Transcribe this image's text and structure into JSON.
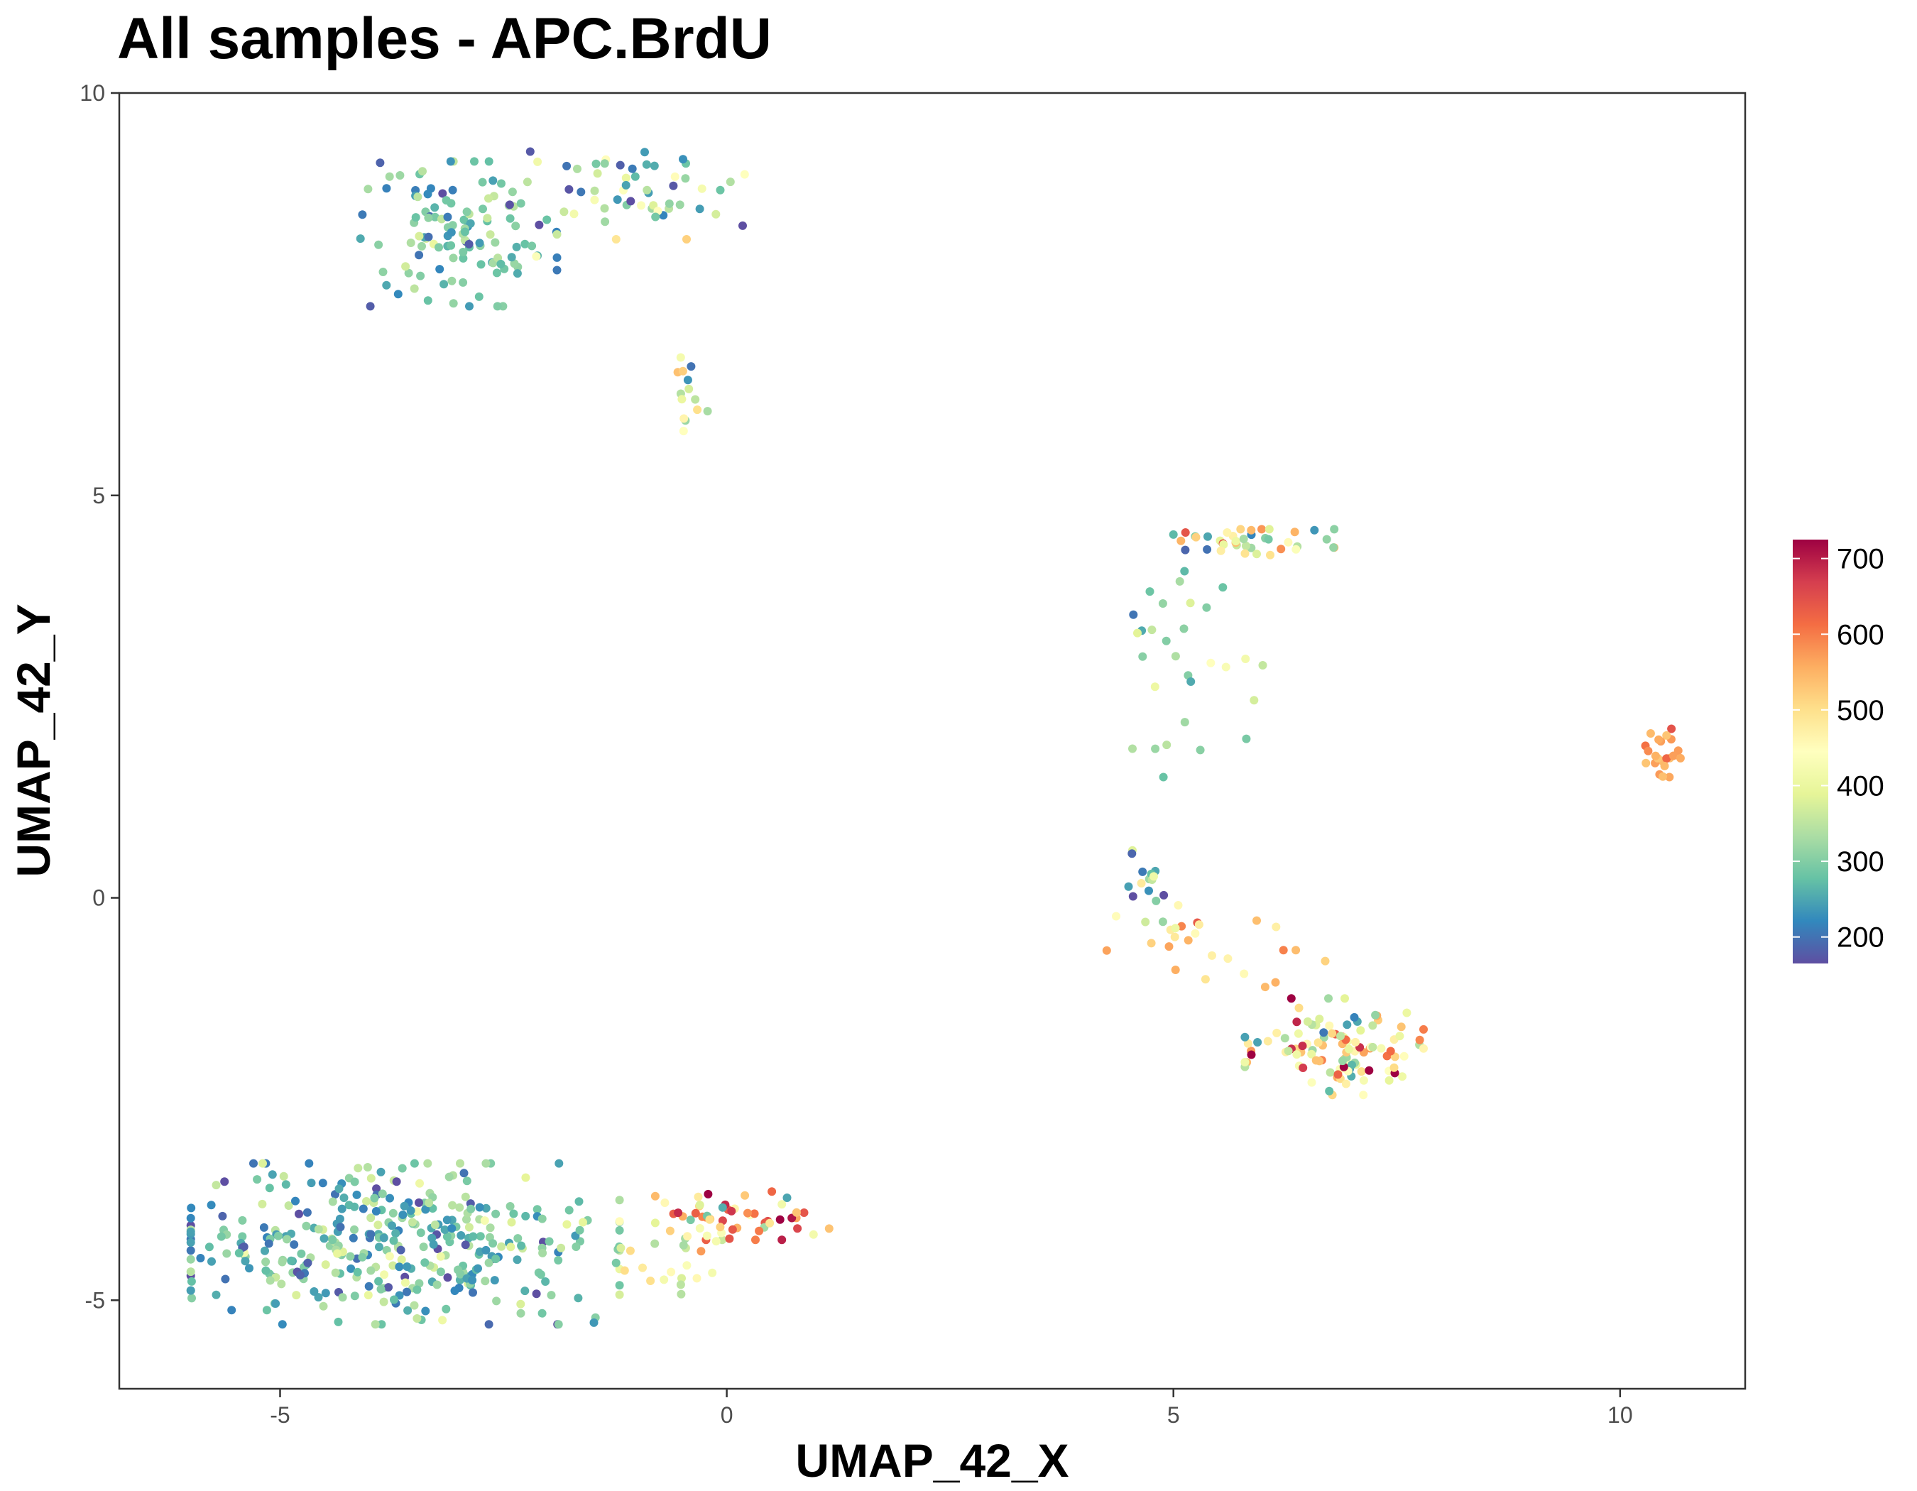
{
  "chart_data": {
    "type": "scatter",
    "title": "All samples - APC.BrdU",
    "xlabel": "UMAP_42_X",
    "ylabel": "UMAP_42_Y",
    "xlim": [
      -6.8,
      11.4
    ],
    "ylim": [
      -6.1,
      10.0
    ],
    "x_ticks": [
      -5,
      0,
      5,
      10
    ],
    "x_tick_labels": [
      "-5",
      "0",
      "5",
      "10"
    ],
    "y_ticks": [
      -5,
      0,
      5,
      10
    ],
    "y_tick_labels": [
      "-5",
      "0",
      "5",
      "10"
    ],
    "grid": false,
    "colorbar": {
      "min": 165,
      "max": 725,
      "ticks": [
        200,
        300,
        400,
        500,
        600,
        700
      ],
      "tick_labels": [
        "200",
        "300",
        "400",
        "500",
        "600",
        "700"
      ],
      "palette": [
        "#5E4FA2",
        "#3288BD",
        "#66C2A5",
        "#ABDDA4",
        "#E6F598",
        "#FFFFBF",
        "#FEE08B",
        "#FDAE61",
        "#F46D43",
        "#D53E4F",
        "#9E0142"
      ],
      "legend_position": "right"
    },
    "clusters": [
      {
        "cx": -3.0,
        "cy": 8.25,
        "sx": 0.55,
        "sy": 0.45,
        "rot": 0.0,
        "n": 120,
        "mean": 280,
        "sd": 60
      },
      {
        "cx": -1.0,
        "cy": 8.7,
        "sx": 0.6,
        "sy": 0.3,
        "rot": 0.0,
        "n": 55,
        "mean": 310,
        "sd": 80
      },
      {
        "cx": -0.45,
        "cy": 6.3,
        "sx": 0.12,
        "sy": 0.25,
        "rot": 0.0,
        "n": 14,
        "mean": 380,
        "sd": 80
      },
      {
        "cx": 5.9,
        "cy": 4.42,
        "sx": 0.45,
        "sy": 0.08,
        "rot": 0.0,
        "n": 40,
        "mean": 380,
        "sd": 130
      },
      {
        "cx": 5.1,
        "cy": 3.0,
        "sx": 0.45,
        "sy": 0.75,
        "rot": 0.0,
        "n": 30,
        "mean": 330,
        "sd": 60
      },
      {
        "cx": 10.45,
        "cy": 1.8,
        "sx": 0.12,
        "sy": 0.15,
        "rot": 0.0,
        "n": 22,
        "mean": 560,
        "sd": 30
      },
      {
        "cx": 4.7,
        "cy": 0.2,
        "sx": 0.12,
        "sy": 0.25,
        "rot": 0.0,
        "n": 16,
        "mean": 300,
        "sd": 130
      },
      {
        "cx": 5.5,
        "cy": -0.6,
        "sx": 0.6,
        "sy": 0.25,
        "rot": -0.3,
        "n": 25,
        "mean": 500,
        "sd": 80
      },
      {
        "cx": 6.8,
        "cy": -1.85,
        "sx": 0.5,
        "sy": 0.3,
        "rot": 0.0,
        "n": 110,
        "mean": 450,
        "sd": 130
      },
      {
        "cx": -3.6,
        "cy": -4.3,
        "sx": 1.2,
        "sy": 0.5,
        "rot": 0.0,
        "n": 380,
        "mean": 280,
        "sd": 60
      },
      {
        "cx": 0.2,
        "cy": -3.95,
        "sx": 0.5,
        "sy": 0.15,
        "rot": 0.0,
        "n": 55,
        "mean": 500,
        "sd": 130
      },
      {
        "cx": -0.5,
        "cy": -4.5,
        "sx": 0.45,
        "sy": 0.25,
        "rot": 0.0,
        "n": 20,
        "mean": 440,
        "sd": 80
      }
    ]
  }
}
